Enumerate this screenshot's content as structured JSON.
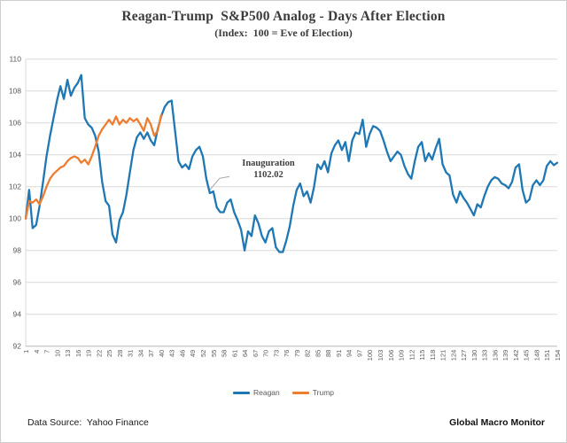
{
  "title": "Reagan-Trump  S&P500 Analog - Days After Election",
  "subtitle": "(Index:  100 = Eve of Election)",
  "annotation": {
    "line1": "Inauguration",
    "line2": "1102.02"
  },
  "legend": [
    {
      "label": "Reagan",
      "color": "#1F77B4"
    },
    {
      "label": "Trump",
      "color": "#ED7D31"
    }
  ],
  "footer": {
    "source": "Data Source:  Yahoo Finance",
    "brand": "Global Macro Monitor"
  },
  "colors": {
    "reagan": "#1F77B4",
    "trump": "#ED7D31",
    "gridline": "#D9D9D9",
    "axis_line": "#BFBFBF",
    "tick_text": "#595959",
    "leader_line": "#A6A6A6"
  },
  "chart_data": {
    "type": "line",
    "title": "Reagan-Trump S&P500 Analog - Days After Election",
    "subtitle": "(Index: 100 = Eve of Election)",
    "xlabel": "",
    "ylabel": "",
    "x_unit": "trading days after election",
    "xlim": [
      1,
      154
    ],
    "ylim": [
      92,
      110
    ],
    "ytick_step": 2,
    "ytick_labels": [
      110,
      108,
      106,
      104,
      102,
      100,
      98,
      96,
      94,
      92
    ],
    "xtick_labels": [
      1,
      4,
      7,
      10,
      13,
      16,
      19,
      22,
      25,
      28,
      31,
      34,
      37,
      40,
      43,
      46,
      49,
      52,
      55,
      58,
      61,
      64,
      67,
      70,
      73,
      76,
      79,
      82,
      85,
      88,
      91,
      94,
      97,
      100,
      103,
      106,
      109,
      112,
      115,
      118,
      121,
      124,
      127,
      130,
      133,
      136,
      139,
      142,
      145,
      148,
      151,
      154
    ],
    "grid": true,
    "legend_position": "bottom",
    "annotation": {
      "text": "Inauguration 1102.02",
      "anchor_day": 54,
      "anchor_value": 101.8
    },
    "series": [
      {
        "name": "Reagan",
        "color": "#1F77B4",
        "start_day": 1,
        "values": [
          100.0,
          101.8,
          99.4,
          99.6,
          100.8,
          102.3,
          103.9,
          105.2,
          106.3,
          107.4,
          108.3,
          107.5,
          108.7,
          107.7,
          108.2,
          108.5,
          109.0,
          106.3,
          105.9,
          105.7,
          105.2,
          104.2,
          102.3,
          101.1,
          100.8,
          99.0,
          98.5,
          99.9,
          100.4,
          101.5,
          102.9,
          104.3,
          105.1,
          105.4,
          105.0,
          105.4,
          104.9,
          104.6,
          105.6,
          106.4,
          107.0,
          107.3,
          107.4,
          105.5,
          103.6,
          103.2,
          103.4,
          103.1,
          103.9,
          104.3,
          104.5,
          103.9,
          102.5,
          101.6,
          101.7,
          100.7,
          100.4,
          100.4,
          101.0,
          101.2,
          100.4,
          99.9,
          99.3,
          98.0,
          99.2,
          98.9,
          100.2,
          99.7,
          98.9,
          98.5,
          99.2,
          99.4,
          98.2,
          97.9,
          97.9,
          98.6,
          99.5,
          100.8,
          101.8,
          102.2,
          101.4,
          101.7,
          101.0,
          102.0,
          103.4,
          103.1,
          103.6,
          102.9,
          104.1,
          104.6,
          104.9,
          104.3,
          104.8,
          103.6,
          104.9,
          105.4,
          105.3,
          106.2,
          104.5,
          105.3,
          105.8,
          105.7,
          105.5,
          104.9,
          104.2,
          103.6,
          103.9,
          104.2,
          104.0,
          103.3,
          102.8,
          102.5,
          103.6,
          104.5,
          104.8,
          103.6,
          104.1,
          103.7,
          104.4,
          105.0,
          103.4,
          102.9,
          102.7,
          101.5,
          101.0,
          101.7,
          101.3,
          101.0,
          100.6,
          100.2,
          100.9,
          100.7,
          101.4,
          102.0,
          102.4,
          102.6,
          102.5,
          102.2,
          102.1,
          101.9,
          102.3,
          103.2,
          103.4,
          101.8,
          101.0,
          101.2,
          102.1,
          102.4,
          102.1,
          102.4,
          103.3,
          103.6,
          103.35,
          103.5
        ]
      },
      {
        "name": "Trump",
        "color": "#ED7D31",
        "start_day": 1,
        "values": [
          100.0,
          101.1,
          101.0,
          101.2,
          100.9,
          101.4,
          102.0,
          102.5,
          102.8,
          103.0,
          103.2,
          103.3,
          103.6,
          103.8,
          103.9,
          103.8,
          103.5,
          103.7,
          103.4,
          103.9,
          104.5,
          105.2,
          105.6,
          105.9,
          106.2,
          105.9,
          106.4,
          105.9,
          106.2,
          106.0,
          106.3,
          106.1,
          106.25,
          105.9,
          105.5,
          106.3,
          105.9,
          105.2,
          105.5,
          106.5
        ]
      }
    ]
  }
}
